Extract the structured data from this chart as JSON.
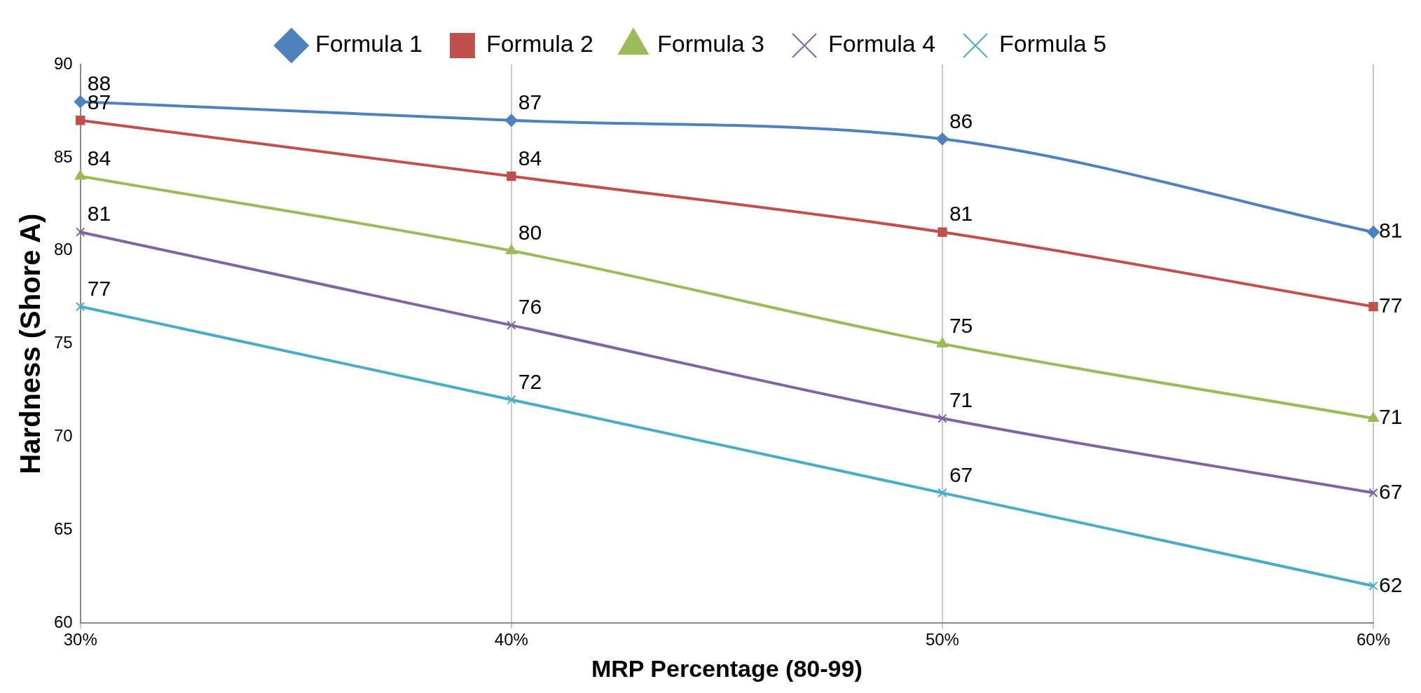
{
  "chart_data": {
    "type": "line",
    "xlabel": "MRP Percentage (80-99)",
    "ylabel": "Hardness (Shore A)",
    "categories": [
      "30%",
      "40%",
      "50%",
      "60%"
    ],
    "series": [
      {
        "name": "Formula 1",
        "color": "#4f81bd",
        "marker": "diamond",
        "values": [
          88,
          87,
          86,
          81
        ]
      },
      {
        "name": "Formula 2",
        "color": "#c0504d",
        "marker": "square",
        "values": [
          87,
          84,
          81,
          77
        ]
      },
      {
        "name": "Formula 3",
        "color": "#9bbb59",
        "marker": "triangle",
        "values": [
          84,
          80,
          75,
          71
        ]
      },
      {
        "name": "Formula 4",
        "color": "#8064a2",
        "marker": "cross",
        "values": [
          81,
          76,
          71,
          67
        ]
      },
      {
        "name": "Formula 5",
        "color": "#4bacc6",
        "marker": "cross",
        "values": [
          77,
          72,
          67,
          62
        ]
      }
    ],
    "ylim": [
      60,
      90
    ],
    "yticks": [
      60,
      65,
      70,
      75,
      80,
      85,
      90
    ],
    "grid": "x",
    "legend": "top",
    "data_labels": true,
    "line_style": "solid"
  }
}
